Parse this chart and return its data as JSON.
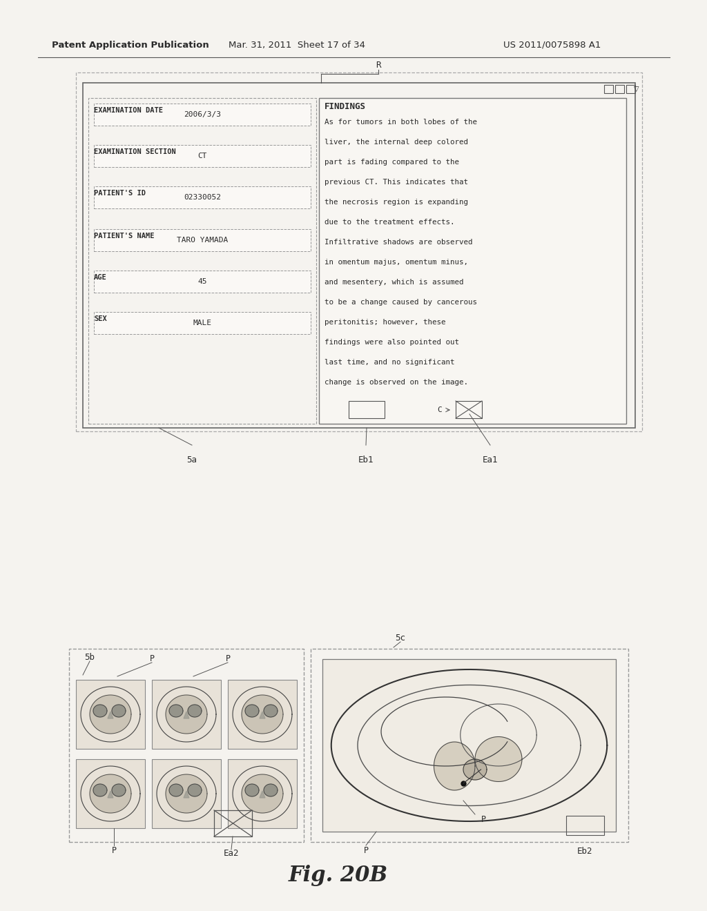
{
  "bg_color": "#f5f3ef",
  "header_text_left": "Patent Application Publication",
  "header_text_mid": "Mar. 31, 2011  Sheet 17 of 34",
  "header_text_right": "US 2011/0075898 A1",
  "fields": [
    {
      "label": "EXAMINATION DATE",
      "value": "2006/3/3"
    },
    {
      "label": "EXAMINATION SECTION",
      "value": "CT"
    },
    {
      "label": "PATIENT'S ID",
      "value": "02330052"
    },
    {
      "label": "PATIENT'S NAME",
      "value": "TARO YAMADA"
    },
    {
      "label": "AGE",
      "value": "45"
    },
    {
      "label": "SEX",
      "value": "MALE"
    }
  ],
  "findings_title": "FINDINGS",
  "findings_lines": [
    "As for tumors in both lobes of the",
    "liver, the internal deep colored",
    "part is fading compared to the",
    "previous CT. This indicates that",
    "the necrosis region is expanding",
    "due to the treatment effects.",
    "Infiltrative shadows are observed",
    "in omentum majus, omentum minus,",
    "and mesentery, which is assumed",
    "to be a change caused by cancerous",
    "peritonitis; however, these",
    "findings were also pointed out",
    "last time, and no significant",
    "change is observed on the image."
  ],
  "font_color": "#2a2a2a",
  "line_color": "#555555",
  "label_R": "R",
  "label_5a": "5a",
  "label_Eb1": "Eb1",
  "label_Ea1": "Ea1",
  "label_5b": "5b",
  "label_5c": "5c",
  "label_Ea2": "Ea2",
  "label_Eb2": "Eb2"
}
